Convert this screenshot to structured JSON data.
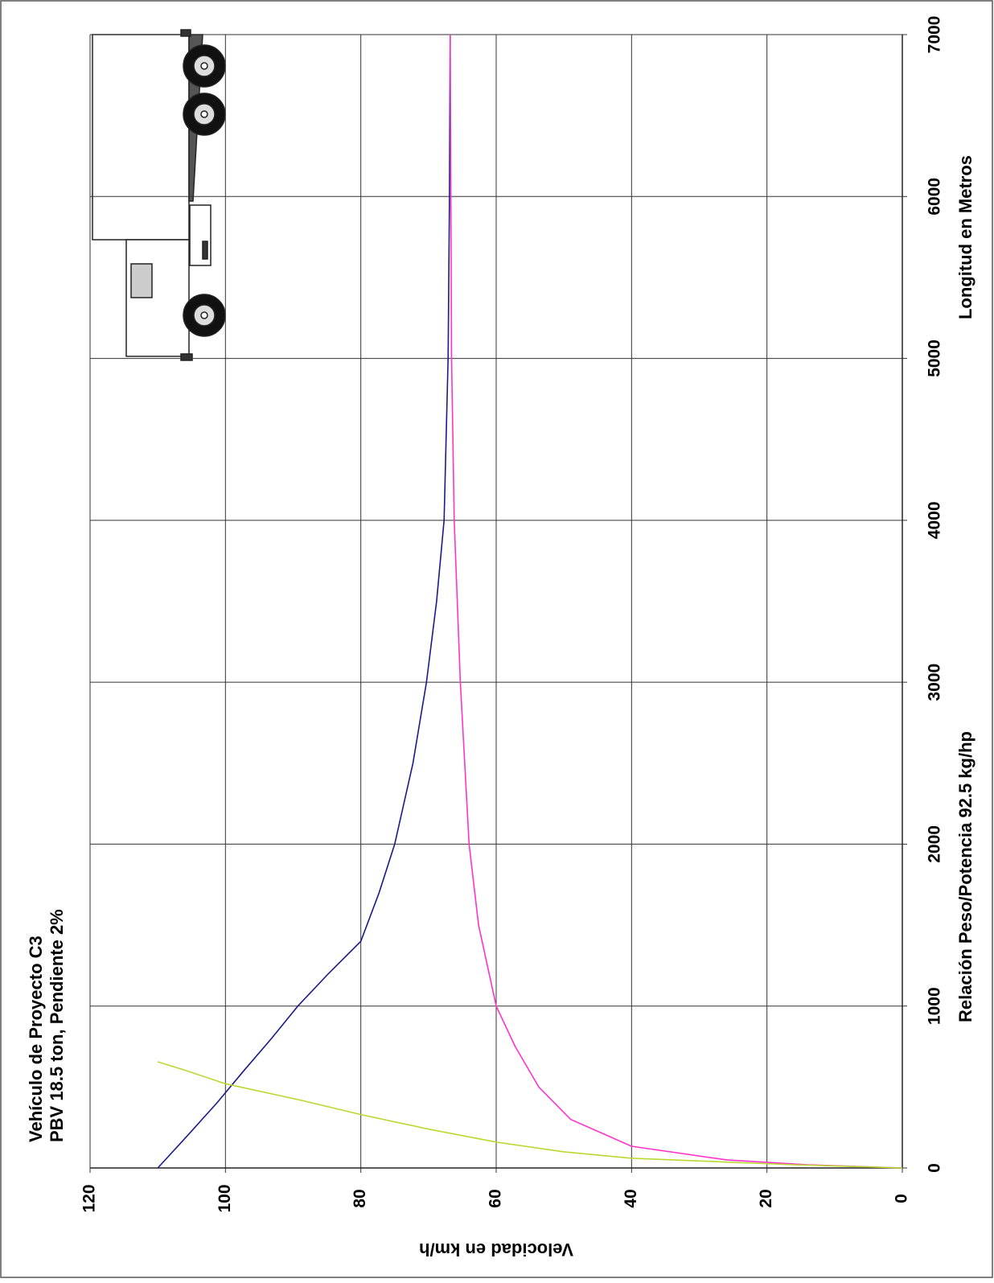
{
  "chart_data": {
    "type": "line",
    "title": "Vehículo de Proyecto C3",
    "subtitle": "PBV 18.5 ton, Pendiente 2%",
    "x_label": "Longitud en Metros",
    "x_label_2": "Relación Peso/Potencia 92.5 kg/hp",
    "y_label": "Velocidad en km/h",
    "xlim": [
      0,
      7000
    ],
    "xticks": [
      0,
      1000,
      2000,
      3000,
      4000,
      5000,
      6000,
      7000
    ],
    "ylim": [
      0,
      120
    ],
    "yticks": [
      0,
      20,
      40,
      60,
      80,
      100,
      120
    ],
    "grid": true,
    "series": [
      {
        "color": "#1a1a8c",
        "x": [
          0,
          200,
          400,
          600,
          800,
          1000,
          1200,
          1400,
          1700,
          2000,
          2500,
          3000,
          3500,
          4000,
          5000,
          6000,
          7000
        ],
        "values": [
          110,
          105.6,
          101.3,
          97.3,
          93.2,
          89.3,
          84.8,
          80,
          77.3,
          75,
          72.3,
          70.3,
          68.8,
          67.7,
          67.1,
          66.9,
          66.8
        ]
      },
      {
        "color": "#ff33cc",
        "x": [
          0,
          20,
          50,
          134,
          300,
          500,
          750,
          1000,
          1500,
          2000,
          3000,
          4000,
          5000,
          6000,
          7000
        ],
        "values": [
          0,
          14,
          26,
          40,
          49,
          53.7,
          57.2,
          60,
          62.6,
          64,
          65.3,
          66.2,
          66.6,
          66.7,
          66.8
        ]
      },
      {
        "color": "#b8d930",
        "x": [
          0,
          20,
          60,
          100,
          160,
          240,
          330,
          420,
          520,
          600,
          656
        ],
        "values": [
          0,
          16,
          40,
          50,
          60,
          70,
          80,
          89,
          100,
          105.7,
          110
        ]
      }
    ]
  }
}
